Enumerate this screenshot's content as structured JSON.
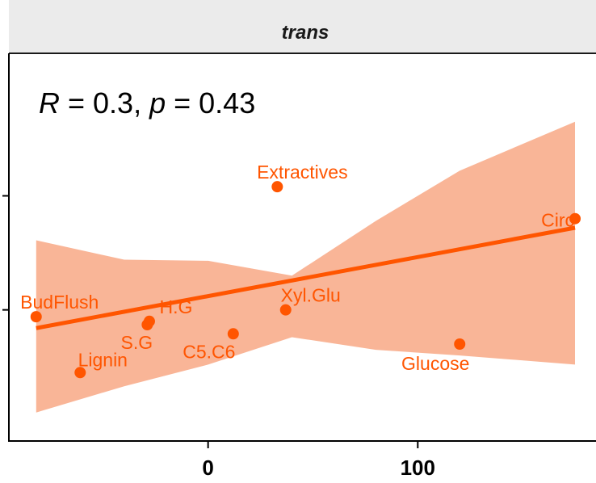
{
  "chart_data": {
    "type": "scatter",
    "facet_label": "trans",
    "stat": {
      "r_symbol": "R",
      "r_value": "0.3",
      "p_symbol": "p",
      "p_value": "0.43"
    },
    "colors": {
      "points": "#FF5500",
      "band": "#F9B597",
      "strip_bg": "#EBEBEB",
      "axis": "#000000"
    },
    "xlim": [
      -95,
      185
    ],
    "ylim": [
      -1.65,
      1.75
    ],
    "x_ticks": [
      0,
      100
    ],
    "y_ticks": [
      -0.5,
      0.5
    ],
    "grid": false,
    "points": [
      {
        "label": "BudFlush",
        "x": -82,
        "y": -0.56
      },
      {
        "label": "Lignin",
        "x": -61,
        "y": -1.05
      },
      {
        "label": "S.G",
        "x": -29,
        "y": -0.63
      },
      {
        "label": "H.G",
        "x": -28,
        "y": -0.6
      },
      {
        "label": "C5.C6",
        "x": 12,
        "y": -0.71
      },
      {
        "label": "Extractives",
        "x": 33,
        "y": 0.58
      },
      {
        "label": "Xyl.Glu",
        "x": 37,
        "y": -0.5
      },
      {
        "label": "Glucose",
        "x": 120,
        "y": -0.8
      },
      {
        "label": "Circ",
        "x": 175,
        "y": 0.3
      }
    ],
    "fit": {
      "x": [
        -82,
        175
      ],
      "y": [
        -0.66,
        0.22
      ]
    },
    "ci_band": [
      {
        "x": -82,
        "lower": -1.4,
        "upper": 0.11
      },
      {
        "x": -40,
        "lower": -1.17,
        "upper": -0.06
      },
      {
        "x": 0,
        "lower": -0.98,
        "upper": -0.07
      },
      {
        "x": 40,
        "lower": -0.74,
        "upper": -0.2
      },
      {
        "x": 80,
        "lower": -0.85,
        "upper": 0.28
      },
      {
        "x": 120,
        "lower": -0.9,
        "upper": 0.72
      },
      {
        "x": 175,
        "lower": -0.98,
        "upper": 1.15
      }
    ]
  }
}
